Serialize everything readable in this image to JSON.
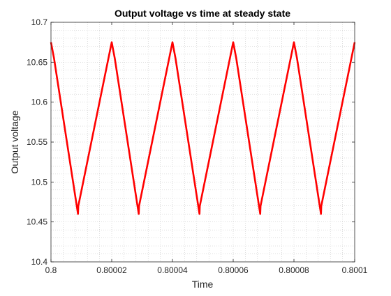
{
  "chart_data": {
    "type": "line",
    "title": "Output voltage vs time at steady state",
    "xlabel": "Time",
    "ylabel": "Output voltage",
    "xlim": [
      0.8,
      0.8001
    ],
    "ylim": [
      10.4,
      10.7
    ],
    "xticks": [
      "0.8",
      "0.80002",
      "0.80004",
      "0.80006",
      "0.80008",
      "0.8001"
    ],
    "yticks": [
      "10.4",
      "10.45",
      "10.5",
      "10.55",
      "10.6",
      "10.65",
      "10.7"
    ],
    "grid": "minor-dotted",
    "series": [
      {
        "color": "#ff0000",
        "x": [
          0.8,
          0.800001,
          0.8000089,
          0.800009,
          0.80002,
          0.800021,
          0.8000289,
          0.800029,
          0.80004,
          0.800041,
          0.8000489,
          0.800049,
          0.80006,
          0.800061,
          0.8000689,
          0.800069,
          0.80008,
          0.800081,
          0.8000889,
          0.800089,
          0.8001
        ],
        "y": [
          10.675,
          10.655,
          10.46,
          10.47,
          10.675,
          10.655,
          10.46,
          10.47,
          10.675,
          10.655,
          10.46,
          10.47,
          10.675,
          10.655,
          10.46,
          10.47,
          10.675,
          10.655,
          10.46,
          10.47,
          10.675
        ]
      }
    ]
  }
}
